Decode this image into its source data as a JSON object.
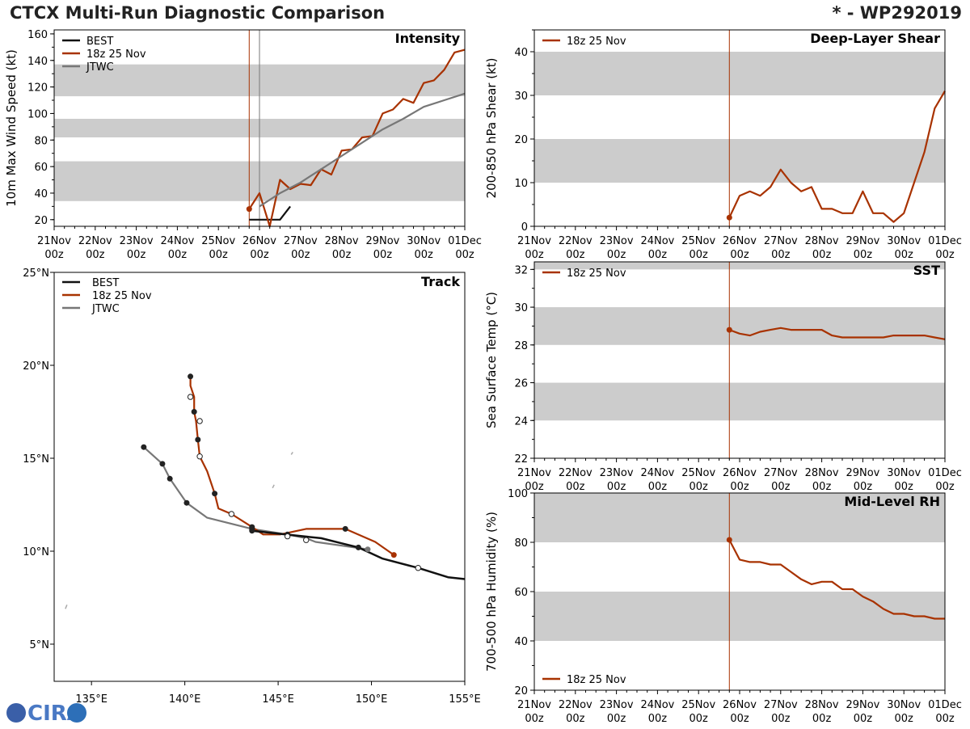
{
  "header": {
    "title": "CTCX Multi-Run Diagnostic Comparison",
    "storm": "* - WP292019"
  },
  "colors": {
    "best": "#111111",
    "run": "#a83200",
    "jtwc": "#777777",
    "band": "#cccccc"
  },
  "time_ticks": [
    [
      "21Nov",
      "00z"
    ],
    [
      "22Nov",
      "00z"
    ],
    [
      "23Nov",
      "00z"
    ],
    [
      "24Nov",
      "00z"
    ],
    [
      "25Nov",
      "00z"
    ],
    [
      "26Nov",
      "00z"
    ],
    [
      "27Nov",
      "00z"
    ],
    [
      "28Nov",
      "00z"
    ],
    [
      "29Nov",
      "00z"
    ],
    [
      "30Nov",
      "00z"
    ],
    [
      "01Dec",
      "00z"
    ]
  ],
  "legend": {
    "best": "BEST",
    "run": "18z 25 Nov",
    "jtwc": "JTWC"
  },
  "logo_text": "CIRA",
  "chart_data": [
    {
      "id": "intensity",
      "type": "line",
      "title": "Intensity",
      "ylabel": "10m Max Wind Speed (kt)",
      "xlim": [
        0,
        10
      ],
      "ylim": [
        15,
        163
      ],
      "yticks": [
        20,
        40,
        60,
        80,
        100,
        120,
        140,
        160
      ],
      "bands": [
        [
          34,
          64
        ],
        [
          82,
          96
        ],
        [
          113,
          137
        ]
      ],
      "vlines": [
        {
          "x": 4.75,
          "color": "run"
        },
        {
          "x": 5.0,
          "color": "jtwc"
        }
      ],
      "series": [
        {
          "name": "BEST",
          "color": "best",
          "x": [
            4.75,
            5.5,
            5.75
          ],
          "y": [
            20,
            20,
            30
          ]
        },
        {
          "name": "18z 25 Nov",
          "color": "run",
          "marker_first": true,
          "x": [
            4.75,
            5.0,
            5.25,
            5.5,
            5.75,
            6.0,
            6.25,
            6.5,
            6.75,
            7.0,
            7.25,
            7.5,
            7.75,
            8.0,
            8.25,
            8.5,
            8.75,
            9.0,
            9.25,
            9.5,
            9.75,
            10.0
          ],
          "y": [
            28,
            40,
            12,
            50,
            43,
            47,
            46,
            58,
            54,
            72,
            73,
            82,
            83,
            100,
            103,
            111,
            108,
            123,
            125,
            133,
            146,
            148
          ]
        },
        {
          "name": "JTWC",
          "color": "jtwc",
          "x": [
            5.0,
            5.5,
            6.0,
            6.5,
            7.0,
            7.5,
            8.0,
            8.5,
            9.0,
            9.5,
            10.0
          ],
          "y": [
            30,
            40,
            48,
            58,
            68,
            78,
            88,
            96,
            105,
            110,
            115
          ]
        }
      ]
    },
    {
      "id": "shear",
      "type": "line",
      "title": "Deep-Layer Shear",
      "ylabel": "200-850 hPa Shear (kt)",
      "xlim": [
        0,
        10
      ],
      "ylim": [
        0,
        45
      ],
      "yticks": [
        0,
        10,
        20,
        30,
        40
      ],
      "bands": [
        [
          10,
          20
        ],
        [
          30,
          40
        ]
      ],
      "vlines": [
        {
          "x": 4.75,
          "color": "run"
        }
      ],
      "series": [
        {
          "name": "18z 25 Nov",
          "color": "run",
          "marker_first": true,
          "x": [
            4.75,
            5.0,
            5.25,
            5.5,
            5.75,
            6.0,
            6.25,
            6.5,
            6.75,
            7.0,
            7.25,
            7.5,
            7.75,
            8.0,
            8.25,
            8.5,
            8.75,
            9.0,
            9.25,
            9.5,
            9.75,
            10.0
          ],
          "y": [
            2,
            7,
            8,
            7,
            9,
            13,
            10,
            8,
            9,
            4,
            4,
            3,
            3,
            8,
            3,
            3,
            1,
            3,
            10,
            17,
            27,
            31
          ]
        }
      ]
    },
    {
      "id": "sst",
      "type": "line",
      "title": "SST",
      "ylabel": "Sea Surface Temp (°C)",
      "xlim": [
        0,
        10
      ],
      "ylim": [
        22,
        32.4
      ],
      "yticks": [
        22,
        24,
        26,
        28,
        30,
        32
      ],
      "bands": [
        [
          24,
          26
        ],
        [
          28,
          30
        ],
        [
          32,
          34
        ]
      ],
      "vlines": [
        {
          "x": 4.75,
          "color": "run"
        }
      ],
      "series": [
        {
          "name": "18z 25 Nov",
          "color": "run",
          "marker_first": true,
          "x": [
            4.75,
            5.0,
            5.25,
            5.5,
            5.75,
            6.0,
            6.25,
            6.5,
            6.75,
            7.0,
            7.25,
            7.5,
            7.75,
            8.0,
            8.25,
            8.5,
            8.75,
            9.0,
            9.25,
            9.5,
            9.75,
            10.0
          ],
          "y": [
            28.8,
            28.6,
            28.5,
            28.7,
            28.8,
            28.9,
            28.8,
            28.8,
            28.8,
            28.8,
            28.5,
            28.4,
            28.4,
            28.4,
            28.4,
            28.4,
            28.5,
            28.5,
            28.5,
            28.5,
            28.4,
            28.3
          ]
        }
      ]
    },
    {
      "id": "rh",
      "type": "line",
      "title": "Mid-Level RH",
      "ylabel": "700-500 hPa Humidity (%)",
      "xlim": [
        0,
        10
      ],
      "ylim": [
        20,
        100
      ],
      "yticks": [
        20,
        40,
        60,
        80,
        100
      ],
      "bands": [
        [
          40,
          60
        ],
        [
          80,
          100
        ]
      ],
      "vlines": [
        {
          "x": 4.75,
          "color": "run"
        }
      ],
      "series": [
        {
          "name": "18z 25 Nov",
          "color": "run",
          "marker_first": true,
          "x": [
            4.75,
            5.0,
            5.25,
            5.5,
            5.75,
            6.0,
            6.25,
            6.5,
            6.75,
            7.0,
            7.25,
            7.5,
            7.75,
            8.0,
            8.25,
            8.5,
            8.75,
            9.0,
            9.25,
            9.5,
            9.75,
            10.0
          ],
          "y": [
            81,
            73,
            72,
            72,
            71,
            71,
            68,
            65,
            63,
            64,
            64,
            61,
            61,
            58,
            56,
            53,
            51,
            51,
            50,
            50,
            49,
            49
          ]
        }
      ]
    },
    {
      "id": "track",
      "type": "scatter",
      "title": "Track",
      "xlim": [
        133,
        155
      ],
      "ylim": [
        3,
        25
      ],
      "xticks": [
        135,
        140,
        145,
        150,
        155
      ],
      "xticklabels": [
        "135°E",
        "140°E",
        "145°E",
        "150°E",
        "155°E"
      ],
      "yticks": [
        5,
        10,
        15,
        20,
        25
      ],
      "yticklabels": [
        "5°N",
        "10°N",
        "15°N",
        "20°N",
        "25°N"
      ],
      "series": [
        {
          "name": "BEST",
          "color": "best",
          "lon": [
            155.0,
            154.1,
            152.5,
            150.6,
            149.3,
            148.5,
            147.3,
            145.4,
            143.6
          ],
          "lat": [
            8.5,
            8.6,
            9.1,
            9.6,
            10.2,
            10.4,
            10.7,
            10.9,
            11.1
          ],
          "filled": [
            false,
            false,
            true,
            false,
            true,
            false,
            false,
            false,
            true
          ]
        },
        {
          "name": "18z 25 Nov",
          "color": "run",
          "lon": [
            151.2,
            150.2,
            148.6,
            147.3,
            146.5,
            145.1,
            144.2,
            143.6,
            142.5,
            141.8,
            141.6,
            141.2,
            140.8,
            140.7,
            140.6,
            140.5,
            140.5,
            140.3,
            140.3
          ],
          "lat": [
            9.8,
            10.5,
            11.2,
            11.2,
            11.2,
            10.9,
            10.9,
            11.3,
            12.0,
            12.3,
            13.1,
            14.3,
            15.1,
            16.0,
            17.0,
            17.5,
            18.3,
            18.9,
            19.4
          ],
          "filled": [
            true,
            false,
            true,
            false,
            false,
            false,
            false,
            true,
            false,
            false,
            true,
            false,
            false,
            true,
            false,
            true,
            false,
            false,
            true
          ],
          "open": [
            false,
            false,
            false,
            false,
            false,
            true,
            false,
            false,
            true,
            false,
            false,
            false,
            true,
            false,
            true,
            false,
            true,
            false,
            false
          ],
          "wp_flag": [
            false,
            false,
            false,
            false,
            false,
            false,
            false,
            false,
            false,
            false,
            false,
            false,
            false,
            false,
            false,
            false,
            false,
            false,
            false
          ]
        },
        {
          "name": "JTWC",
          "color": "jtwc",
          "lon": [
            149.8,
            147.0,
            146.5,
            145.5,
            143.6,
            141.2,
            140.1,
            139.2,
            138.8,
            137.8
          ],
          "lat": [
            10.1,
            10.5,
            10.7,
            10.9,
            11.2,
            11.8,
            12.6,
            13.9,
            14.7,
            15.6
          ],
          "filled": [
            true,
            false,
            false,
            true,
            true,
            false,
            true,
            true,
            true,
            true
          ]
        },
        {
          "name": "open markers",
          "color": "run",
          "lon": [
            152.5,
            146.5,
            145.5,
            142.5,
            140.8,
            140.8,
            140.3
          ],
          "lat": [
            9.1,
            10.6,
            10.8,
            12.0,
            15.1,
            17.0,
            18.3
          ]
        }
      ]
    }
  ]
}
